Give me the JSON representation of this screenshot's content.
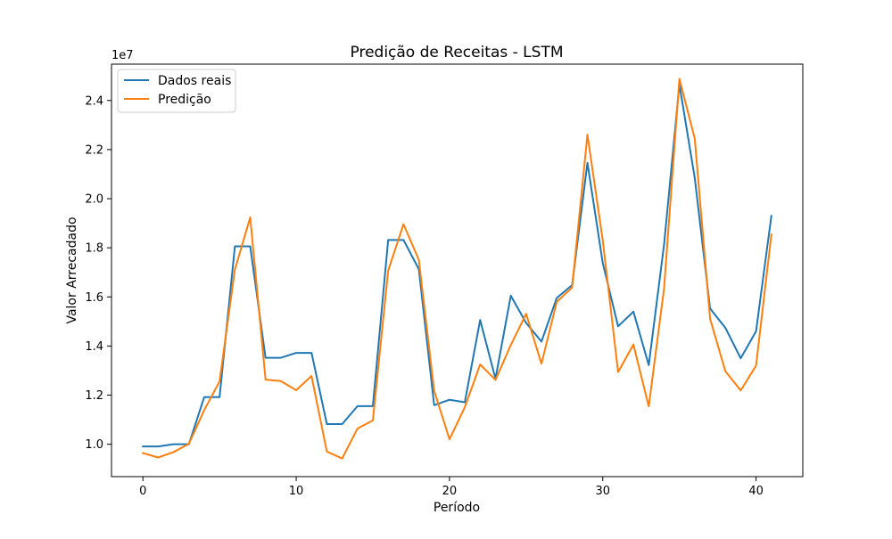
{
  "chart_data": {
    "type": "line",
    "title": "Predição de Receitas - LSTM",
    "xlabel": "Período",
    "ylabel": "Valor Arrecadado",
    "y_offset_label": "1e7",
    "x": [
      0,
      1,
      2,
      3,
      4,
      5,
      6,
      7,
      8,
      9,
      10,
      11,
      12,
      13,
      14,
      15,
      16,
      17,
      18,
      19,
      20,
      21,
      22,
      23,
      24,
      25,
      26,
      27,
      28,
      29,
      30,
      31,
      32,
      33,
      34,
      35,
      36,
      37,
      38,
      39,
      40,
      41
    ],
    "xlim": [
      -2.05,
      43.05
    ],
    "ylim": [
      0.868,
      2.548
    ],
    "xticks": [
      0,
      10,
      20,
      30,
      40
    ],
    "xtick_labels": [
      "0",
      "10",
      "20",
      "30",
      "40"
    ],
    "yticks": [
      1.0,
      1.2,
      1.4,
      1.6,
      1.8,
      2.0,
      2.2,
      2.4
    ],
    "ytick_labels": [
      "1.0",
      "1.2",
      "1.4",
      "1.6",
      "1.8",
      "2.0",
      "2.2",
      "2.4"
    ],
    "grid": false,
    "legend_position": "top-left",
    "series": [
      {
        "name": "Dados reais",
        "color": "#1f77b4",
        "values": [
          0.991,
          0.991,
          1.0,
          1.0,
          1.192,
          1.192,
          1.806,
          1.806,
          1.352,
          1.352,
          1.372,
          1.372,
          1.082,
          1.082,
          1.155,
          1.155,
          1.832,
          1.832,
          1.713,
          1.159,
          1.181,
          1.171,
          1.506,
          1.267,
          1.605,
          1.494,
          1.418,
          1.596,
          1.648,
          2.146,
          1.738,
          1.48,
          1.54,
          1.322,
          1.813,
          2.465,
          2.085,
          1.553,
          1.474,
          1.35,
          1.46,
          1.93
        ]
      },
      {
        "name": "Predição",
        "color": "#ff7f0e",
        "values": [
          0.964,
          0.946,
          0.968,
          1.002,
          1.139,
          1.256,
          1.711,
          1.924,
          1.263,
          1.257,
          1.22,
          1.278,
          0.97,
          0.942,
          1.064,
          1.097,
          1.707,
          1.896,
          1.751,
          1.218,
          1.02,
          1.151,
          1.325,
          1.262,
          1.404,
          1.531,
          1.328,
          1.58,
          1.638,
          2.261,
          1.83,
          1.294,
          1.406,
          1.154,
          1.635,
          2.488,
          2.245,
          1.511,
          1.297,
          1.219,
          1.32,
          1.854
        ]
      }
    ]
  }
}
